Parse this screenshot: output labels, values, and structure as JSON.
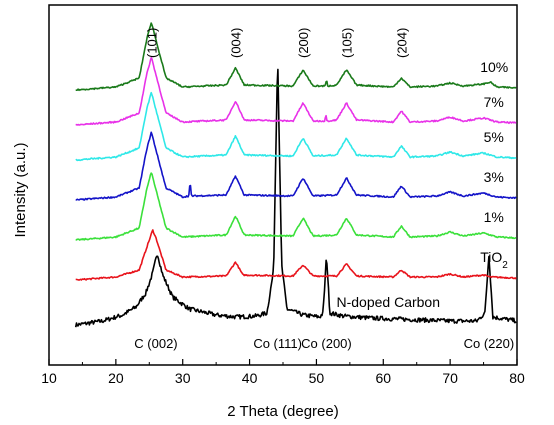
{
  "chart_data": {
    "type": "line",
    "title": "",
    "xlabel": "2 Theta (degree)",
    "ylabel": "Intensity (a.u.)",
    "xlim": [
      10,
      80
    ],
    "xticks": [
      10,
      20,
      30,
      40,
      50,
      60,
      70,
      80
    ],
    "grid": false,
    "legend": "labels placed at right end of each trace",
    "series": [
      {
        "name": "N-doped Carbon",
        "color": "#000000",
        "baseline": 0,
        "points": [
          [
            14,
            0
          ],
          [
            18,
            4
          ],
          [
            21,
            10
          ],
          [
            23,
            18
          ],
          [
            24.5,
            32
          ],
          [
            25.5,
            52
          ],
          [
            26.2,
            72
          ],
          [
            27,
            50
          ],
          [
            28.5,
            28
          ],
          [
            31,
            16
          ],
          [
            35,
            10
          ],
          [
            38,
            8
          ],
          [
            41,
            9
          ],
          [
            42.6,
            12
          ],
          [
            43.6,
            55
          ],
          [
            44.2,
            270
          ],
          [
            44.8,
            60
          ],
          [
            45.6,
            16
          ],
          [
            48,
            10
          ],
          [
            50.5,
            8
          ],
          [
            51,
            12
          ],
          [
            51.5,
            70
          ],
          [
            52,
            12
          ],
          [
            54,
            9
          ],
          [
            58,
            7
          ],
          [
            62,
            6
          ],
          [
            66,
            5
          ],
          [
            70,
            4
          ],
          [
            74,
            4
          ],
          [
            75.2,
            12
          ],
          [
            75.8,
            70
          ],
          [
            76.4,
            8
          ],
          [
            80,
            4
          ]
        ]
      },
      {
        "name": "TiO2",
        "color": "#e8141c",
        "baseline": 45,
        "points": [
          [
            14,
            0
          ],
          [
            20,
            3
          ],
          [
            23.5,
            10
          ],
          [
            25,
            40
          ],
          [
            25.5,
            50
          ],
          [
            26,
            42
          ],
          [
            27.5,
            10
          ],
          [
            30,
            3
          ],
          [
            36.5,
            4
          ],
          [
            37.9,
            18
          ],
          [
            39,
            5
          ],
          [
            46.5,
            4
          ],
          [
            48,
            15
          ],
          [
            49.5,
            4
          ],
          [
            53,
            4
          ],
          [
            54.5,
            16
          ],
          [
            56,
            4
          ],
          [
            61.5,
            3
          ],
          [
            62.7,
            10
          ],
          [
            64,
            3
          ],
          [
            68,
            3
          ],
          [
            70,
            6
          ],
          [
            72,
            3
          ],
          [
            75,
            5
          ],
          [
            76,
            3
          ],
          [
            80,
            2
          ]
        ]
      },
      {
        "name": "1%",
        "color": "#3be03b",
        "baseline": 85,
        "points": [
          [
            14,
            0
          ],
          [
            20,
            3
          ],
          [
            23.5,
            12
          ],
          [
            24.6,
            50
          ],
          [
            25.3,
            68
          ],
          [
            26,
            50
          ],
          [
            27.5,
            12
          ],
          [
            30,
            3
          ],
          [
            36.5,
            5
          ],
          [
            37.9,
            24
          ],
          [
            39.2,
            5
          ],
          [
            46.5,
            4
          ],
          [
            48,
            22
          ],
          [
            49.5,
            4
          ],
          [
            53,
            5
          ],
          [
            54.5,
            22
          ],
          [
            56,
            5
          ],
          [
            61.5,
            3
          ],
          [
            62.7,
            14
          ],
          [
            64,
            3
          ],
          [
            68,
            4
          ],
          [
            70,
            8
          ],
          [
            72,
            4
          ],
          [
            75,
            7
          ],
          [
            77,
            3
          ],
          [
            80,
            2
          ]
        ]
      },
      {
        "name": "3%",
        "color": "#1414c8",
        "baseline": 125,
        "points": [
          [
            14,
            0
          ],
          [
            20,
            3
          ],
          [
            23.5,
            12
          ],
          [
            24.6,
            50
          ],
          [
            25.3,
            68
          ],
          [
            26,
            50
          ],
          [
            27.5,
            12
          ],
          [
            30,
            3
          ],
          [
            30.9,
            4
          ],
          [
            31.1,
            18
          ],
          [
            31.3,
            4
          ],
          [
            36.5,
            5
          ],
          [
            37.9,
            24
          ],
          [
            39.2,
            5
          ],
          [
            46.5,
            4
          ],
          [
            48,
            22
          ],
          [
            49.5,
            4
          ],
          [
            53,
            5
          ],
          [
            54.5,
            22
          ],
          [
            56,
            5
          ],
          [
            61.5,
            3
          ],
          [
            62.7,
            14
          ],
          [
            64,
            3
          ],
          [
            68,
            4
          ],
          [
            70,
            8
          ],
          [
            72,
            4
          ],
          [
            75,
            7
          ],
          [
            77,
            3
          ],
          [
            80,
            2
          ]
        ]
      },
      {
        "name": "5%",
        "color": "#2fe8e8",
        "baseline": 165,
        "points": [
          [
            14,
            0
          ],
          [
            20,
            3
          ],
          [
            23.5,
            12
          ],
          [
            24.6,
            50
          ],
          [
            25.3,
            68
          ],
          [
            26,
            50
          ],
          [
            27.5,
            12
          ],
          [
            30,
            3
          ],
          [
            36.5,
            5
          ],
          [
            37.9,
            24
          ],
          [
            39.2,
            5
          ],
          [
            46.5,
            4
          ],
          [
            48,
            22
          ],
          [
            49.5,
            4
          ],
          [
            53,
            5
          ],
          [
            54.5,
            22
          ],
          [
            56,
            5
          ],
          [
            61.5,
            3
          ],
          [
            62.7,
            14
          ],
          [
            64,
            3
          ],
          [
            68,
            4
          ],
          [
            70,
            8
          ],
          [
            72,
            4
          ],
          [
            75,
            7
          ],
          [
            77,
            3
          ],
          [
            80,
            2
          ]
        ]
      },
      {
        "name": "7%",
        "color": "#e832e8",
        "baseline": 200,
        "points": [
          [
            14,
            0
          ],
          [
            20,
            3
          ],
          [
            23.5,
            12
          ],
          [
            24.6,
            50
          ],
          [
            25.3,
            68
          ],
          [
            26,
            50
          ],
          [
            27.5,
            12
          ],
          [
            30,
            3
          ],
          [
            36.5,
            5
          ],
          [
            37.9,
            24
          ],
          [
            39.2,
            5
          ],
          [
            46.5,
            4
          ],
          [
            48,
            22
          ],
          [
            49.5,
            4
          ],
          [
            51.2,
            4
          ],
          [
            51.4,
            10
          ],
          [
            51.6,
            4
          ],
          [
            53,
            5
          ],
          [
            54.5,
            22
          ],
          [
            56,
            5
          ],
          [
            61.5,
            3
          ],
          [
            62.7,
            14
          ],
          [
            64,
            3
          ],
          [
            68,
            4
          ],
          [
            70,
            8
          ],
          [
            72,
            4
          ],
          [
            75,
            7
          ],
          [
            77,
            3
          ],
          [
            80,
            2
          ]
        ]
      },
      {
        "name": "10%",
        "color": "#1a7a1a",
        "baseline": 235,
        "points": [
          [
            14,
            0
          ],
          [
            20,
            3
          ],
          [
            23.5,
            12
          ],
          [
            24.6,
            50
          ],
          [
            25.3,
            68
          ],
          [
            26,
            50
          ],
          [
            27.5,
            12
          ],
          [
            30,
            3
          ],
          [
            36.5,
            5
          ],
          [
            37.9,
            22
          ],
          [
            39.2,
            5
          ],
          [
            46.5,
            4
          ],
          [
            48,
            20
          ],
          [
            49.5,
            4
          ],
          [
            51.3,
            4
          ],
          [
            51.5,
            10
          ],
          [
            51.7,
            4
          ],
          [
            53,
            5
          ],
          [
            54.5,
            20
          ],
          [
            56,
            5
          ],
          [
            61.5,
            3
          ],
          [
            62.7,
            12
          ],
          [
            64,
            3
          ],
          [
            68,
            4
          ],
          [
            70,
            7
          ],
          [
            72,
            4
          ],
          [
            75,
            6
          ],
          [
            76,
            8
          ],
          [
            77,
            3
          ],
          [
            80,
            2
          ]
        ]
      }
    ],
    "series_labels": [
      {
        "text": "10%",
        "x": 74.5,
        "yoffset": 14
      },
      {
        "text": "7%",
        "x": 75,
        "yoffset": 14
      },
      {
        "text": "5%",
        "x": 75,
        "yoffset": 14
      },
      {
        "text": "3%",
        "x": 75,
        "yoffset": 14
      },
      {
        "text": "1%",
        "x": 75,
        "yoffset": 14
      },
      {
        "text": "TiO",
        "sub": "2",
        "x": 74.5,
        "yoffset": 14
      },
      {
        "text": "N-doped Carbon",
        "x": 53,
        "yoffset": 14
      }
    ],
    "peak_labels": [
      {
        "text": "(101)",
        "x": 25.3
      },
      {
        "text": "(004)",
        "x": 37.9
      },
      {
        "text": "(200)",
        "x": 48
      },
      {
        "text": "(105)",
        "x": 54.5
      },
      {
        "text": "(204)",
        "x": 62.7
      }
    ],
    "bottom_labels": [
      {
        "text": "C (002)",
        "x": 26
      },
      {
        "text": "Co (111)",
        "x": 44.2
      },
      {
        "text": "Co (200)",
        "x": 51.5
      },
      {
        "text": "Co (220)",
        "x": 75.8
      }
    ]
  }
}
